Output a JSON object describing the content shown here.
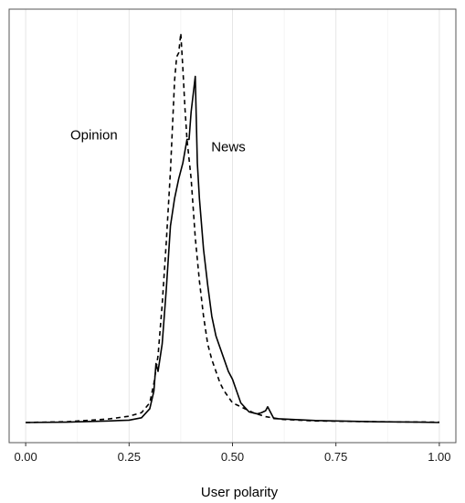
{
  "chart_data": {
    "type": "line",
    "title": "",
    "xlabel": "User polarity",
    "ylabel": "",
    "xlim": [
      -0.04,
      1.04
    ],
    "ylim": [
      0,
      1
    ],
    "x_ticks": [
      "0.00",
      "0.25",
      "0.50",
      "0.75",
      "1.00"
    ],
    "x_tick_values": [
      0.0,
      0.25,
      0.5,
      0.75,
      1.0
    ],
    "grid": "vertical",
    "legend": "none",
    "annotations": [
      {
        "text": "Opinion",
        "x": 0.165,
        "y": 0.72
      },
      {
        "text": "News",
        "x": 0.49,
        "y": 0.69
      }
    ],
    "series": [
      {
        "style": "solid",
        "color": "#000000",
        "points": [
          [
            0.0,
            0.0
          ],
          [
            0.1,
            0.001
          ],
          [
            0.2,
            0.004
          ],
          [
            0.25,
            0.006
          ],
          [
            0.28,
            0.012
          ],
          [
            0.3,
            0.035
          ],
          [
            0.31,
            0.08
          ],
          [
            0.315,
            0.15
          ],
          [
            0.32,
            0.13
          ],
          [
            0.33,
            0.2
          ],
          [
            0.34,
            0.34
          ],
          [
            0.35,
            0.5
          ],
          [
            0.36,
            0.57
          ],
          [
            0.37,
            0.62
          ],
          [
            0.38,
            0.66
          ],
          [
            0.39,
            0.72
          ],
          [
            0.395,
            0.72
          ],
          [
            0.4,
            0.79
          ],
          [
            0.41,
            0.88
          ],
          [
            0.415,
            0.66
          ],
          [
            0.42,
            0.57
          ],
          [
            0.43,
            0.44
          ],
          [
            0.44,
            0.35
          ],
          [
            0.45,
            0.27
          ],
          [
            0.46,
            0.22
          ],
          [
            0.47,
            0.19
          ],
          [
            0.48,
            0.16
          ],
          [
            0.49,
            0.13
          ],
          [
            0.5,
            0.11
          ],
          [
            0.51,
            0.08
          ],
          [
            0.52,
            0.05
          ],
          [
            0.54,
            0.027
          ],
          [
            0.56,
            0.022
          ],
          [
            0.57,
            0.025
          ],
          [
            0.58,
            0.03
          ],
          [
            0.585,
            0.04
          ],
          [
            0.59,
            0.03
          ],
          [
            0.6,
            0.01
          ],
          [
            0.7,
            0.005
          ],
          [
            0.85,
            0.002
          ],
          [
            0.95,
            0.001
          ],
          [
            1.0,
            0.0
          ]
        ]
      },
      {
        "style": "dashed",
        "color": "#000000",
        "points": [
          [
            0.0,
            0.0
          ],
          [
            0.1,
            0.002
          ],
          [
            0.2,
            0.009
          ],
          [
            0.25,
            0.016
          ],
          [
            0.28,
            0.025
          ],
          [
            0.3,
            0.05
          ],
          [
            0.31,
            0.1
          ],
          [
            0.32,
            0.17
          ],
          [
            0.33,
            0.3
          ],
          [
            0.34,
            0.46
          ],
          [
            0.35,
            0.64
          ],
          [
            0.36,
            0.87
          ],
          [
            0.365,
            0.93
          ],
          [
            0.37,
            0.94
          ],
          [
            0.375,
            0.99
          ],
          [
            0.38,
            0.9
          ],
          [
            0.385,
            0.8
          ],
          [
            0.39,
            0.72
          ],
          [
            0.4,
            0.62
          ],
          [
            0.41,
            0.47
          ],
          [
            0.42,
            0.36
          ],
          [
            0.43,
            0.27
          ],
          [
            0.44,
            0.2
          ],
          [
            0.45,
            0.16
          ],
          [
            0.46,
            0.13
          ],
          [
            0.47,
            0.1
          ],
          [
            0.48,
            0.08
          ],
          [
            0.5,
            0.05
          ],
          [
            0.52,
            0.04
          ],
          [
            0.55,
            0.025
          ],
          [
            0.58,
            0.015
          ],
          [
            0.62,
            0.008
          ],
          [
            0.7,
            0.004
          ],
          [
            0.85,
            0.002
          ],
          [
            1.0,
            0.001
          ]
        ]
      }
    ]
  }
}
